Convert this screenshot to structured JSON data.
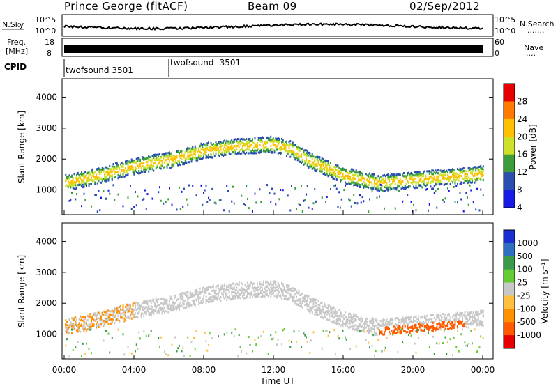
{
  "header": {
    "station": "Prince George (fitACF)",
    "beam": "Beam 09",
    "date": "02/Sep/2012"
  },
  "noise_panel": {
    "left_label": "N.Sky",
    "left_ticks": [
      "10^5",
      "10^0"
    ],
    "right_ticks": [
      "10^5",
      "10^0"
    ],
    "right_label": "N.Search",
    "right_dots": "·······"
  },
  "freq_panel": {
    "left_label_1": "Freq.",
    "left_label_2": "[MHz]",
    "left_ticks": [
      "18",
      "8"
    ],
    "right_ticks": [
      "60",
      "0"
    ],
    "right_label": "Nave",
    "right_dots": "····"
  },
  "cpid": {
    "label": "CPID",
    "programs": [
      {
        "name": "twofsound 3501",
        "start_hour": 0.0
      },
      {
        "name": "twofsound -3501",
        "start_hour": 6.0
      }
    ]
  },
  "chart_data": [
    {
      "type": "heatmap",
      "panel": "power",
      "ylabel": "Slant Range [km]",
      "yticks": [
        1000,
        2000,
        3000,
        4000
      ],
      "ylim": [
        200,
        4600
      ],
      "xlim": [
        0,
        24
      ],
      "colorbar": {
        "label": "Power [dB]",
        "ticks": [
          "28",
          "24",
          "20",
          "16",
          "12",
          "8",
          "4"
        ],
        "colors": [
          "#e60000",
          "#ff7a00",
          "#ffc000",
          "#cde02a",
          "#3b9e3b",
          "#2a4fb0",
          "#1a1ae6"
        ]
      },
      "trace_range_km": [
        [
          0,
          1250
        ],
        [
          2,
          1500
        ],
        [
          4,
          1800
        ],
        [
          6,
          2000
        ],
        [
          8,
          2300
        ],
        [
          10,
          2450
        ],
        [
          12,
          2500
        ],
        [
          13,
          2350
        ],
        [
          14,
          2000
        ],
        [
          16,
          1500
        ],
        [
          18,
          1250
        ],
        [
          20,
          1350
        ],
        [
          22,
          1450
        ],
        [
          24,
          1550
        ]
      ]
    },
    {
      "type": "heatmap",
      "panel": "velocity",
      "ylabel": "Slant Range [km]",
      "yticks": [
        1000,
        2000,
        3000,
        4000
      ],
      "ylim": [
        200,
        4600
      ],
      "xlim": [
        0,
        24
      ],
      "xticks": [
        "00:00",
        "04:00",
        "08:00",
        "12:00",
        "16:00",
        "20:00",
        "00:00"
      ],
      "xlabel": "Time UT",
      "colorbar": {
        "label": "Velocity [m s⁻¹]",
        "ticks": [
          "1000",
          "500",
          "100",
          "25",
          "-25",
          "-100",
          "-500",
          "-1000"
        ],
        "colors": [
          "#1a2fd0",
          "#2f6fc0",
          "#3a9a4a",
          "#66cc33",
          "#c8c8c8",
          "#ffc040",
          "#ff9000",
          "#ff5a00",
          "#e60000"
        ]
      }
    }
  ]
}
